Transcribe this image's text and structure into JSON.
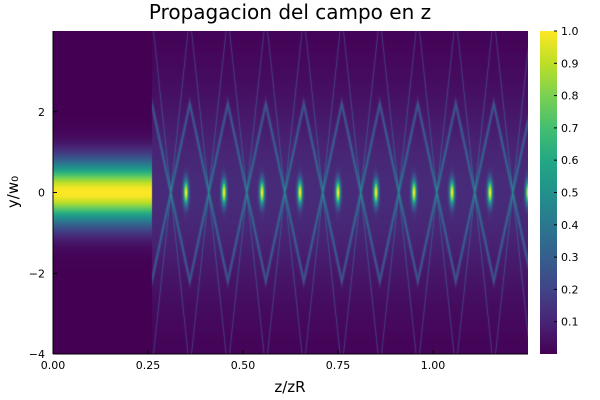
{
  "chart_data": {
    "type": "heatmap",
    "title": "Propagacion del campo en z",
    "xlabel": "z/zR",
    "ylabel": "y/w₀",
    "xlim": [
      0,
      1.25
    ],
    "ylim": [
      -4,
      4
    ],
    "x_ticks": [
      "0.00",
      "0.25",
      "0.50",
      "0.75",
      "1.00"
    ],
    "y_ticks": [
      "−4",
      "−2",
      "0",
      "2"
    ],
    "colorbar": {
      "range": [
        0,
        1
      ],
      "ticks": [
        "0.1",
        "0.2",
        "0.3",
        "0.4",
        "0.5",
        "0.6",
        "0.7",
        "0.8",
        "0.9",
        "1.0"
      ]
    },
    "colormap": "viridis",
    "regions": {
      "gaussian_beam_end_z": 0.26,
      "focus_positions_z": [
        0.35,
        0.45,
        0.55,
        0.65,
        0.75,
        0.85,
        0.95,
        1.05,
        1.15,
        1.25
      ]
    },
    "grid": false,
    "colors": {
      "background": "#440154",
      "axis": "#000000"
    }
  }
}
